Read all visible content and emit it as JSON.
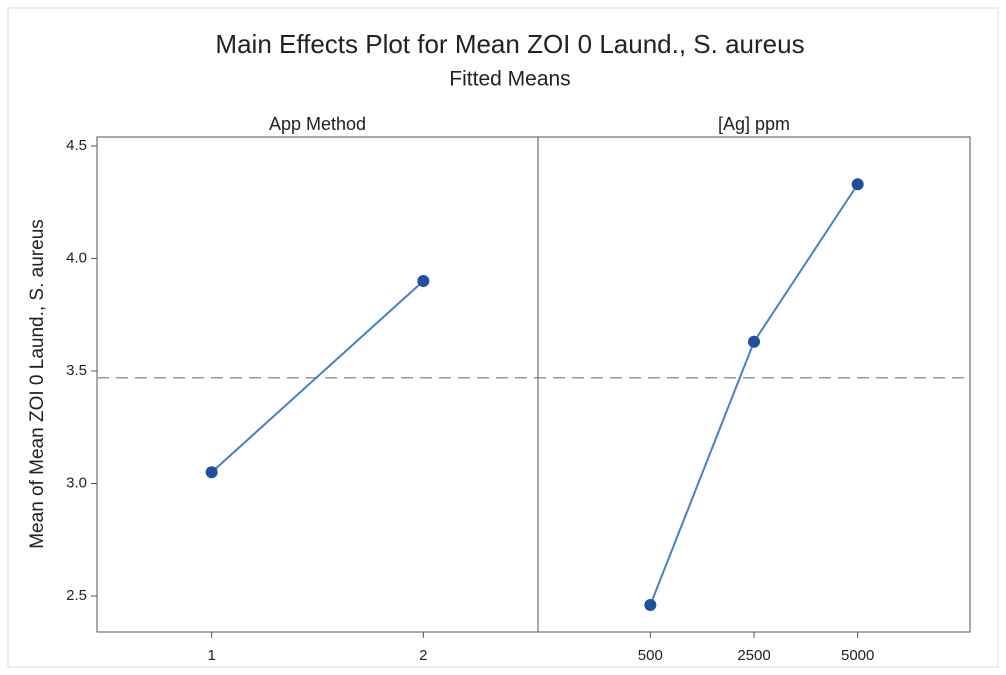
{
  "chart_data": {
    "type": "line",
    "title": "Main Effects Plot for Mean ZOI 0 Laund., S. aureus",
    "subtitle": "Fitted Means",
    "ylabel": "Mean of Mean ZOI 0 Laund., S. aureus",
    "ylim": [
      2.34,
      4.54
    ],
    "yticks": [
      {
        "value": 2.5,
        "label": "2.5"
      },
      {
        "value": 3,
        "label": "3.0"
      },
      {
        "value": 3.5,
        "label": "3.5"
      },
      {
        "value": 4,
        "label": "4.0"
      },
      {
        "value": 4.5,
        "label": "4.5"
      }
    ],
    "reference_line": 3.47,
    "color": "#4a7fc8",
    "marker_color": "#1f4f9e",
    "panels": [
      {
        "title": "App Method",
        "categories": [
          "1",
          "2"
        ],
        "values": [
          3.05,
          3.9
        ]
      },
      {
        "title": "[Ag] ppm",
        "categories": [
          "500",
          "2500",
          "5000"
        ],
        "values": [
          2.46,
          3.63,
          4.33
        ]
      }
    ]
  }
}
